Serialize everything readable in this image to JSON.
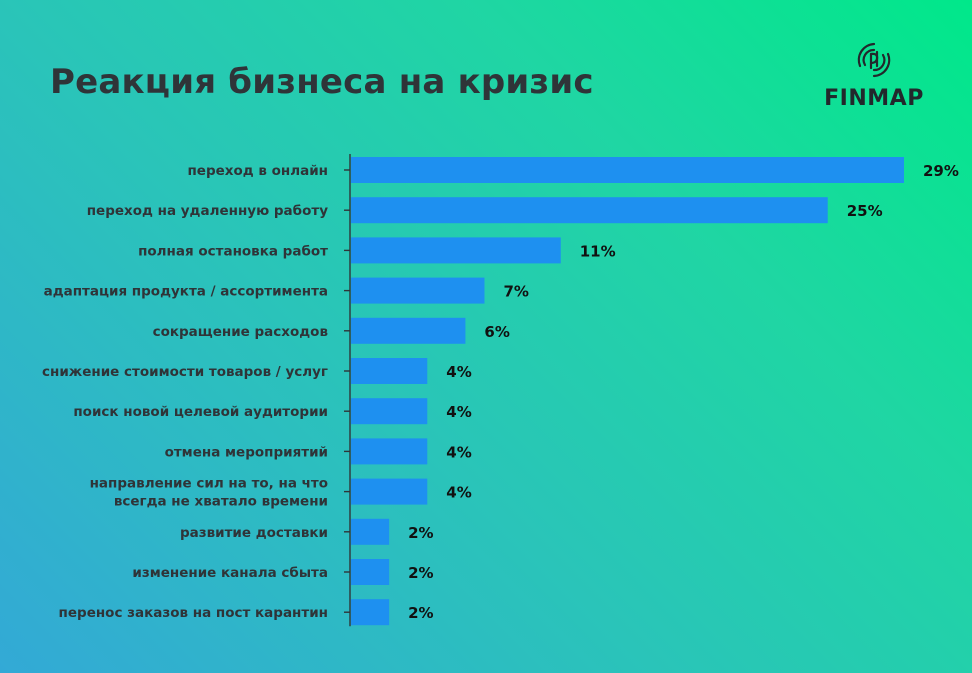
{
  "header": {
    "title": "Реакция бизнеса на кризис",
    "logo_text": "FINMAP"
  },
  "colors": {
    "bar": "#1e90f0",
    "axis": "#2f3438",
    "title": "#2f3438",
    "background_start": "#00e88a",
    "background_end": "#33a9d6"
  },
  "chart_data": {
    "type": "bar",
    "orientation": "horizontal",
    "title": "Реакция бизнеса на кризис",
    "xlabel": "",
    "ylabel": "",
    "xlim": [
      0,
      29
    ],
    "grid": false,
    "categories": [
      [
        "переход в онлайн"
      ],
      [
        "переход на удаленную работу"
      ],
      [
        "полная остановка работ"
      ],
      [
        "адаптация продукта / ассортимента"
      ],
      [
        "сокращение расходов"
      ],
      [
        "снижение стоимости товаров / услуг"
      ],
      [
        "поиск новой целевой аудитории"
      ],
      [
        "отмена мероприятий"
      ],
      [
        "направление сил на то, на что",
        "всегда не хватало времени"
      ],
      [
        "развитие доставки"
      ],
      [
        "изменение канала сбыта"
      ],
      [
        "перенос заказов на пост карантин"
      ]
    ],
    "values": [
      29,
      25,
      11,
      7,
      6,
      4,
      4,
      4,
      4,
      2,
      2,
      2
    ],
    "value_labels": [
      "29%",
      "25%",
      "11%",
      "7%",
      "6%",
      "4%",
      "4%",
      "4%",
      "4%",
      "2%",
      "2%",
      "2%"
    ]
  }
}
